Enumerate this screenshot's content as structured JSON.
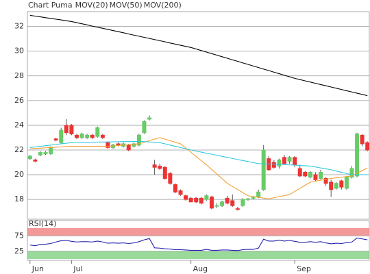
{
  "chart_data": [
    {
      "type": "candlestick",
      "title": "Chart Puma",
      "categories": [
        "Jun",
        null,
        null,
        null,
        null,
        null,
        null,
        null,
        "Jul",
        null,
        null,
        null,
        null,
        null,
        null,
        null,
        null,
        null,
        null,
        null,
        null,
        null,
        null,
        null,
        null,
        null,
        null,
        null,
        null,
        null,
        null,
        "Aug",
        null,
        null,
        null,
        null,
        null,
        null,
        null,
        null,
        null,
        null,
        null,
        null,
        null,
        null,
        null,
        null,
        null,
        null,
        null,
        "Sep",
        null,
        null,
        null,
        null,
        null,
        null,
        null,
        null,
        null,
        null,
        null,
        null,
        null,
        null
      ],
      "open": [
        21.3,
        21.2,
        21.6,
        21.7,
        21.7,
        22.9,
        22.6,
        24.0,
        24.0,
        23.2,
        23.0,
        23.0,
        23.2,
        23.1,
        23.2,
        22.6,
        22.2,
        22.5,
        22.3,
        22.4,
        22.3,
        22.4,
        23.4,
        24.5,
        20.8,
        20.7,
        20.6,
        20.1,
        19.2,
        18.7,
        18.3,
        18.1,
        18.1,
        18.1,
        18.0,
        18.2,
        17.45,
        17.5,
        18.1,
        17.9,
        17.25,
        17.5,
        18.0,
        18.1,
        18.2,
        18.8,
        21.3,
        21.0,
        20.7,
        21.4,
        21.1,
        21.4,
        20.5,
        20.2,
        19.8,
        20.0,
        19.7,
        19.7,
        19.4,
        18.9,
        19.5,
        18.9,
        19.8,
        19.9,
        23.2,
        22.6
      ],
      "high": [
        21.6,
        21.3,
        21.9,
        21.9,
        22.3,
        23.0,
        23.8,
        24.5,
        24.1,
        23.3,
        23.4,
        23.3,
        23.3,
        23.9,
        23.3,
        22.7,
        22.5,
        22.6,
        22.6,
        22.5,
        22.6,
        23.3,
        24.4,
        24.8,
        21.2,
        20.9,
        20.7,
        20.2,
        19.3,
        18.8,
        18.4,
        18.2,
        18.2,
        18.2,
        18.4,
        18.3,
        17.7,
        17.9,
        18.3,
        18.4,
        17.4,
        18.1,
        18.1,
        18.2,
        18.8,
        22.4,
        21.5,
        21.2,
        21.3,
        21.6,
        21.5,
        21.5,
        20.8,
        20.3,
        20.3,
        20.2,
        20.4,
        19.8,
        19.6,
        19.4,
        19.6,
        19.9,
        20.7,
        23.4,
        23.3,
        22.7
      ],
      "low": [
        21.2,
        21.0,
        21.5,
        21.6,
        21.6,
        22.7,
        22.5,
        23.2,
        23.2,
        22.9,
        22.9,
        22.9,
        22.9,
        23.0,
        22.9,
        22.1,
        22.1,
        22.3,
        22.2,
        21.9,
        22.2,
        22.3,
        23.3,
        24.4,
        20.0,
        20.4,
        19.6,
        19.2,
        18.5,
        18.3,
        17.9,
        17.8,
        17.7,
        17.6,
        17.9,
        17.2,
        17.3,
        17.4,
        17.6,
        17.4,
        17.1,
        17.4,
        17.9,
        18.0,
        18.1,
        18.7,
        20.3,
        20.5,
        20.5,
        20.8,
        20.9,
        20.6,
        19.8,
        19.8,
        19.7,
        19.5,
        19.6,
        19.1,
        18.2,
        18.8,
        18.8,
        18.8,
        19.7,
        19.8,
        22.3,
        21.9
      ],
      "close": [
        21.5,
        21.1,
        21.8,
        21.8,
        22.2,
        22.8,
        23.6,
        23.4,
        23.3,
        23.0,
        23.3,
        23.2,
        23.0,
        23.8,
        23.0,
        22.2,
        22.4,
        22.4,
        22.5,
        22.0,
        22.5,
        23.2,
        24.3,
        24.6,
        20.6,
        20.5,
        19.7,
        19.3,
        18.6,
        18.4,
        18.0,
        17.8,
        17.8,
        17.7,
        18.3,
        17.3,
        17.5,
        17.8,
        17.7,
        17.5,
        17.2,
        18.0,
        18.05,
        18.15,
        18.6,
        22.0,
        20.4,
        20.6,
        21.2,
        20.9,
        21.4,
        20.8,
        19.9,
        19.9,
        20.2,
        19.6,
        20.2,
        19.3,
        18.8,
        19.3,
        19.0,
        19.8,
        20.5,
        23.3,
        22.5,
        22.0
      ],
      "up_color": "#66cc66",
      "down_color": "#ee3333",
      "series": [
        {
          "name": "MOV(20)",
          "color": "#f0a030",
          "values": [
            22.1,
            22.13,
            22.15,
            22.18,
            22.2,
            22.23,
            22.25,
            22.28,
            22.3,
            22.3,
            22.3,
            22.3,
            22.3,
            22.3,
            22.3,
            22.3,
            22.33,
            22.37,
            22.4,
            22.43,
            22.47,
            22.5,
            22.63,
            22.75,
            22.88,
            23.0,
            22.88,
            22.75,
            22.63,
            22.5,
            22.16,
            21.82,
            21.48,
            21.14,
            20.8,
            20.43,
            20.05,
            19.68,
            19.3,
            19.05,
            18.8,
            18.55,
            18.3,
            18.24,
            18.18,
            18.11,
            18.05,
            18.14,
            18.23,
            18.31,
            18.4,
            18.65,
            18.9,
            19.15,
            19.4,
            19.48,
            19.55,
            19.63,
            19.7,
            19.75,
            19.8,
            19.85,
            19.9,
            20.12,
            20.33,
            20.55
          ]
        },
        {
          "name": "MOV(50)",
          "color": "#30c8e0",
          "values": [
            22.2,
            22.25,
            22.3,
            22.35,
            22.4,
            22.45,
            22.5,
            22.55,
            22.6,
            22.61,
            22.62,
            22.62,
            22.63,
            22.64,
            22.65,
            22.65,
            22.66,
            22.67,
            22.68,
            22.68,
            22.69,
            22.7,
            22.68,
            22.65,
            22.63,
            22.6,
            22.5,
            22.4,
            22.3,
            22.2,
            22.1,
            22.0,
            21.91,
            21.83,
            21.74,
            21.66,
            21.57,
            21.49,
            21.4,
            21.32,
            21.23,
            21.15,
            21.07,
            20.98,
            20.9,
            20.88,
            20.87,
            20.85,
            20.83,
            20.82,
            20.8,
            20.78,
            20.75,
            20.73,
            20.7,
            20.63,
            20.55,
            20.48,
            20.4,
            20.3,
            20.2,
            20.1,
            20.0,
            20.0,
            20.0,
            20.0
          ]
        },
        {
          "name": "MOV(200)",
          "color": "#000000",
          "values": [
            32.9,
            32.84,
            32.78,
            32.71,
            32.65,
            32.59,
            32.53,
            32.46,
            32.4,
            32.31,
            32.22,
            32.13,
            32.03,
            31.94,
            31.85,
            31.76,
            31.67,
            31.58,
            31.49,
            31.39,
            31.3,
            31.21,
            31.12,
            31.03,
            30.94,
            30.85,
            30.76,
            30.66,
            30.57,
            30.48,
            30.39,
            30.3,
            30.18,
            30.05,
            29.93,
            29.8,
            29.68,
            29.55,
            29.43,
            29.3,
            29.18,
            29.05,
            28.93,
            28.8,
            28.68,
            28.55,
            28.43,
            28.3,
            28.18,
            28.05,
            27.93,
            27.8,
            27.7,
            27.6,
            27.5,
            27.4,
            27.3,
            27.2,
            27.1,
            27.0,
            26.9,
            26.8,
            26.7,
            26.6,
            26.5,
            26.4
          ]
        }
      ],
      "ylim": [
        16.4,
        33.2
      ],
      "yticks": [
        18,
        20,
        22,
        24,
        26,
        28,
        30,
        32
      ],
      "grid": true
    },
    {
      "type": "line",
      "series": [
        {
          "name": "RSI(14)",
          "color": "#2222aa",
          "values": [
            45,
            43,
            47,
            48,
            50,
            55,
            59,
            60,
            57,
            55,
            56,
            56,
            55,
            58,
            55,
            51,
            52,
            51,
            52,
            50,
            52,
            56,
            62,
            66,
            36,
            35,
            33,
            32,
            30,
            30,
            29,
            28,
            28,
            28,
            31,
            28,
            28,
            29,
            29,
            28,
            27,
            30,
            31,
            31,
            35,
            64,
            58,
            58,
            61,
            58,
            60,
            57,
            54,
            54,
            56,
            54,
            56,
            52,
            49,
            51,
            50,
            53,
            55,
            68,
            65,
            62
          ]
        }
      ],
      "ylim": [
        0,
        100
      ],
      "yticks": [
        25,
        75
      ],
      "grid": true,
      "band_colors": [
        "#f08080",
        "#80d080"
      ]
    }
  ]
}
